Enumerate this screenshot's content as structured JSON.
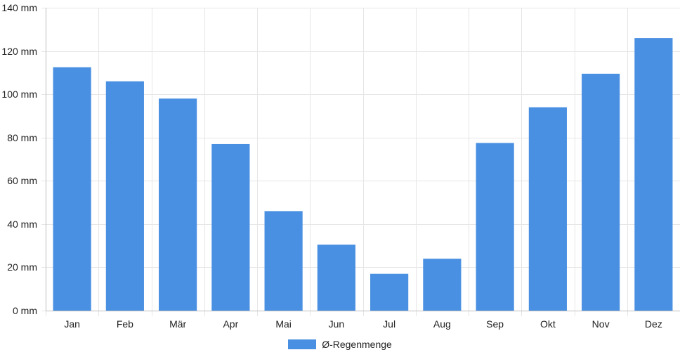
{
  "chart_data": {
    "type": "bar",
    "categories": [
      "Jan",
      "Feb",
      "Mär",
      "Apr",
      "Mai",
      "Jun",
      "Jul",
      "Aug",
      "Sep",
      "Okt",
      "Nov",
      "Dez"
    ],
    "series": [
      {
        "name": "Ø-Regenmenge",
        "values": [
          112.5,
          106,
          98,
          77,
          46,
          30.5,
          17,
          24,
          77.5,
          94,
          109.5,
          126
        ]
      }
    ],
    "y_ticks": [
      "0 mm",
      "20 mm",
      "40 mm",
      "60 mm",
      "80 mm",
      "100 mm",
      "120 mm",
      "140 mm"
    ],
    "ylim": [
      0,
      140
    ],
    "ytick_step": 20,
    "y_unit": "mm",
    "grid": true,
    "legend_position": "bottom",
    "colors": {
      "bar": "#4a90e2",
      "grid": "#e6e6e6",
      "axis": "#bdbdbd"
    }
  }
}
